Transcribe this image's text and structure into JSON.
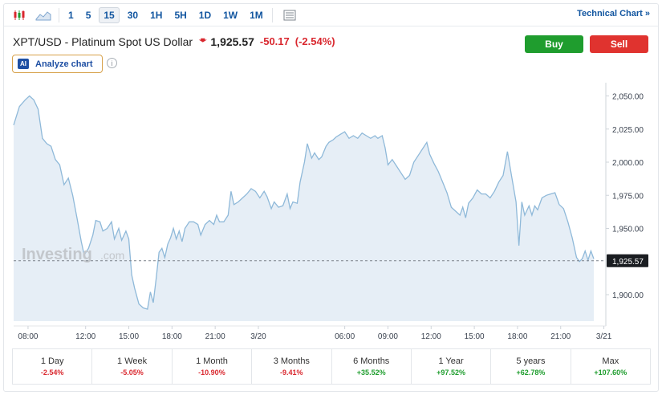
{
  "toolbar": {
    "timeframes": [
      "1",
      "5",
      "15",
      "30",
      "1H",
      "5H",
      "1D",
      "1W",
      "1M"
    ],
    "active_timeframe": "15",
    "technical_chart_label": "Technical Chart »"
  },
  "header": {
    "symbol": "XPT/USD - Platinum Spot US Dollar",
    "direction_icon": "arrow-down-icon",
    "price": "1,925.57",
    "change": "-50.17",
    "change_pct": "(-2.54%)",
    "buy_label": "Buy",
    "sell_label": "Sell",
    "analyze_badge": "AI",
    "analyze_label": "Analyze chart",
    "info_icon": "i"
  },
  "colors": {
    "negative": "#d9272e",
    "positive": "#1f9d2e",
    "line": "#8fb9d9",
    "area": "#e6eef6"
  },
  "chart_data": {
    "type": "area",
    "watermark": "Investing",
    "watermark_suffix": ".com",
    "current_price_label": "1,925.57",
    "current_price": 1925.57,
    "y_ticks": [
      "2,050.00",
      "2,025.00",
      "2,000.00",
      "1,975.00",
      "1,950.00",
      "1,900.00"
    ],
    "y_tick_values": [
      2050,
      2025,
      2000,
      1975,
      1950,
      1900
    ],
    "x_ticks": [
      "08:00",
      "12:00",
      "15:00",
      "18:00",
      "21:00",
      "3/20",
      "06:00",
      "09:00",
      "12:00",
      "15:00",
      "18:00",
      "21:00",
      "3/21"
    ],
    "x_tick_hours": [
      8,
      12,
      15,
      18,
      21,
      24,
      30,
      33,
      36,
      39,
      42,
      45,
      48
    ],
    "x_range_hours": [
      7.0,
      47.3
    ],
    "ylim": [
      1880,
      2060
    ],
    "points": [
      [
        7.0,
        2028
      ],
      [
        7.4,
        2042
      ],
      [
        7.8,
        2047
      ],
      [
        8.1,
        2050
      ],
      [
        8.4,
        2047
      ],
      [
        8.7,
        2040
      ],
      [
        9.0,
        2018
      ],
      [
        9.3,
        2014
      ],
      [
        9.6,
        2012
      ],
      [
        9.9,
        2002
      ],
      [
        10.2,
        1998
      ],
      [
        10.5,
        1983
      ],
      [
        10.8,
        1988
      ],
      [
        11.1,
        1975
      ],
      [
        11.4,
        1958
      ],
      [
        11.7,
        1940
      ],
      [
        11.9,
        1930
      ],
      [
        12.2,
        1935
      ],
      [
        12.5,
        1945
      ],
      [
        12.7,
        1956
      ],
      [
        13.0,
        1955
      ],
      [
        13.2,
        1948
      ],
      [
        13.5,
        1950
      ],
      [
        13.8,
        1955
      ],
      [
        14.0,
        1942
      ],
      [
        14.3,
        1950
      ],
      [
        14.5,
        1941
      ],
      [
        14.8,
        1948
      ],
      [
        15.0,
        1942
      ],
      [
        15.2,
        1915
      ],
      [
        15.4,
        1905
      ],
      [
        15.7,
        1893
      ],
      [
        16.0,
        1890
      ],
      [
        16.3,
        1889
      ],
      [
        16.5,
        1902
      ],
      [
        16.7,
        1894
      ],
      [
        16.9,
        1912
      ],
      [
        17.1,
        1932
      ],
      [
        17.3,
        1935
      ],
      [
        17.5,
        1928
      ],
      [
        17.7,
        1938
      ],
      [
        17.9,
        1943
      ],
      [
        18.1,
        1950
      ],
      [
        18.3,
        1942
      ],
      [
        18.5,
        1948
      ],
      [
        18.7,
        1940
      ],
      [
        18.9,
        1950
      ],
      [
        19.2,
        1955
      ],
      [
        19.5,
        1955
      ],
      [
        19.8,
        1953
      ],
      [
        20.0,
        1945
      ],
      [
        20.3,
        1953
      ],
      [
        20.6,
        1956
      ],
      [
        20.9,
        1953
      ],
      [
        21.1,
        1960
      ],
      [
        21.3,
        1955
      ],
      [
        21.6,
        1955
      ],
      [
        21.9,
        1960
      ],
      [
        22.1,
        1978
      ],
      [
        22.3,
        1968
      ],
      [
        22.6,
        1970
      ],
      [
        22.9,
        1973
      ],
      [
        23.2,
        1976
      ],
      [
        23.5,
        1980
      ],
      [
        23.8,
        1978
      ],
      [
        24.1,
        1973
      ],
      [
        24.4,
        1978
      ],
      [
        24.6,
        1974
      ],
      [
        24.9,
        1965
      ],
      [
        25.1,
        1970
      ],
      [
        25.4,
        1966
      ],
      [
        25.7,
        1967
      ],
      [
        26.0,
        1976
      ],
      [
        26.2,
        1965
      ],
      [
        26.4,
        1970
      ],
      [
        26.7,
        1969
      ],
      [
        26.9,
        1985
      ],
      [
        27.2,
        2000
      ],
      [
        27.4,
        2014
      ],
      [
        27.7,
        2003
      ],
      [
        27.9,
        2007
      ],
      [
        28.2,
        2002
      ],
      [
        28.4,
        2004
      ],
      [
        28.7,
        2012
      ],
      [
        28.9,
        2015
      ],
      [
        29.2,
        2017
      ],
      [
        29.4,
        2019
      ],
      [
        29.7,
        2021
      ],
      [
        30.0,
        2023
      ],
      [
        30.3,
        2018
      ],
      [
        30.6,
        2020
      ],
      [
        30.9,
        2018
      ],
      [
        31.2,
        2022
      ],
      [
        31.5,
        2020
      ],
      [
        31.8,
        2018
      ],
      [
        32.1,
        2020
      ],
      [
        32.3,
        2018
      ],
      [
        32.6,
        2020
      ],
      [
        32.8,
        2011
      ],
      [
        33.0,
        1998
      ],
      [
        33.3,
        2002
      ],
      [
        33.6,
        1997
      ],
      [
        33.9,
        1992
      ],
      [
        34.2,
        1987
      ],
      [
        34.5,
        1990
      ],
      [
        34.8,
        2000
      ],
      [
        35.1,
        2005
      ],
      [
        35.4,
        2010
      ],
      [
        35.7,
        2015
      ],
      [
        35.9,
        2006
      ],
      [
        36.2,
        1999
      ],
      [
        36.5,
        1993
      ],
      [
        36.8,
        1985
      ],
      [
        37.1,
        1977
      ],
      [
        37.4,
        1966
      ],
      [
        37.7,
        1963
      ],
      [
        38.0,
        1960
      ],
      [
        38.2,
        1966
      ],
      [
        38.4,
        1958
      ],
      [
        38.6,
        1969
      ],
      [
        38.9,
        1973
      ],
      [
        39.2,
        1979
      ],
      [
        39.5,
        1976
      ],
      [
        39.8,
        1976
      ],
      [
        40.1,
        1973
      ],
      [
        40.4,
        1978
      ],
      [
        40.7,
        1985
      ],
      [
        41.0,
        1990
      ],
      [
        41.3,
        2008
      ],
      [
        41.6,
        1989
      ],
      [
        41.9,
        1970
      ],
      [
        42.1,
        1937
      ],
      [
        42.3,
        1970
      ],
      [
        42.5,
        1960
      ],
      [
        42.8,
        1967
      ],
      [
        43.0,
        1960
      ],
      [
        43.2,
        1967
      ],
      [
        43.4,
        1964
      ],
      [
        43.7,
        1973
      ],
      [
        44.0,
        1975
      ],
      [
        44.3,
        1976
      ],
      [
        44.6,
        1977
      ],
      [
        44.9,
        1968
      ],
      [
        45.2,
        1965
      ],
      [
        45.5,
        1955
      ],
      [
        45.8,
        1943
      ],
      [
        46.1,
        1928
      ],
      [
        46.3,
        1925
      ],
      [
        46.5,
        1927
      ],
      [
        46.7,
        1933
      ],
      [
        46.9,
        1926
      ],
      [
        47.1,
        1933
      ],
      [
        47.3,
        1927
      ]
    ]
  },
  "periods": [
    {
      "label": "1 Day",
      "value": "-2.54%",
      "dir": "neg"
    },
    {
      "label": "1 Week",
      "value": "-5.05%",
      "dir": "neg"
    },
    {
      "label": "1 Month",
      "value": "-10.90%",
      "dir": "neg"
    },
    {
      "label": "3 Months",
      "value": "-9.41%",
      "dir": "neg"
    },
    {
      "label": "6 Months",
      "value": "+35.52%",
      "dir": "pos"
    },
    {
      "label": "1 Year",
      "value": "+97.52%",
      "dir": "pos"
    },
    {
      "label": "5 years",
      "value": "+62.78%",
      "dir": "pos"
    },
    {
      "label": "Max",
      "value": "+107.60%",
      "dir": "pos"
    }
  ]
}
